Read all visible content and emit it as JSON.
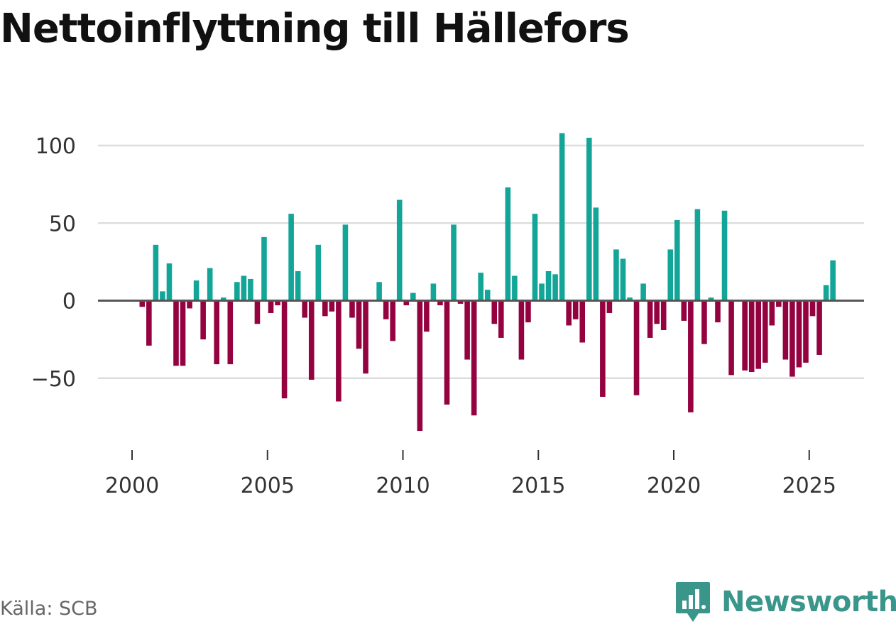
{
  "title": "Nettoinflyttning till Hällefors",
  "source": "Källa: SCB",
  "brand": {
    "name": "Newsworthy",
    "logo_icon": "newsworthy-logo-icon"
  },
  "colors": {
    "positive": "#13a597",
    "negative": "#940340",
    "zero_line": "#555555",
    "grid": "#dddddd",
    "brand": "#3a958a"
  },
  "chart_data": {
    "type": "bar",
    "title": "Nettoinflyttning till Hällefors",
    "xlabel": "",
    "ylabel": "",
    "frequency": "quarterly",
    "start": {
      "year": 2000,
      "quarter": 1
    },
    "x_tick_labels": [
      "2000",
      "2005",
      "2010",
      "2015",
      "2020",
      "2025"
    ],
    "y_tick_labels": [
      "−50",
      "0",
      "50",
      "100"
    ],
    "y_ticks": [
      -50,
      0,
      50,
      100
    ],
    "ylim": [
      -90,
      110
    ],
    "grid": true,
    "values": [
      0,
      -4,
      -29,
      36,
      6,
      24,
      -42,
      -42,
      -5,
      13,
      -25,
      21,
      -41,
      2,
      -41,
      12,
      16,
      14,
      -15,
      41,
      -8,
      -3,
      -63,
      56,
      19,
      -11,
      -51,
      36,
      -10,
      -7,
      -65,
      49,
      -11,
      -31,
      -47,
      0,
      12,
      -12,
      -26,
      65,
      -3,
      5,
      -84,
      -20,
      11,
      -3,
      -67,
      49,
      -2,
      -38,
      -74,
      18,
      7,
      -15,
      -24,
      73,
      16,
      -38,
      -14,
      56,
      11,
      19,
      17,
      108,
      -16,
      -12,
      -27,
      105,
      60,
      -62,
      -8,
      33,
      27,
      2,
      -61,
      11,
      -24,
      -15,
      -19,
      33,
      52,
      -13,
      -72,
      59,
      -28,
      2,
      -14,
      58,
      -48,
      0,
      -45,
      -46,
      -44,
      -40,
      -16,
      -4,
      -38,
      -49,
      -43,
      -40,
      -10,
      -35,
      10,
      26
    ]
  }
}
